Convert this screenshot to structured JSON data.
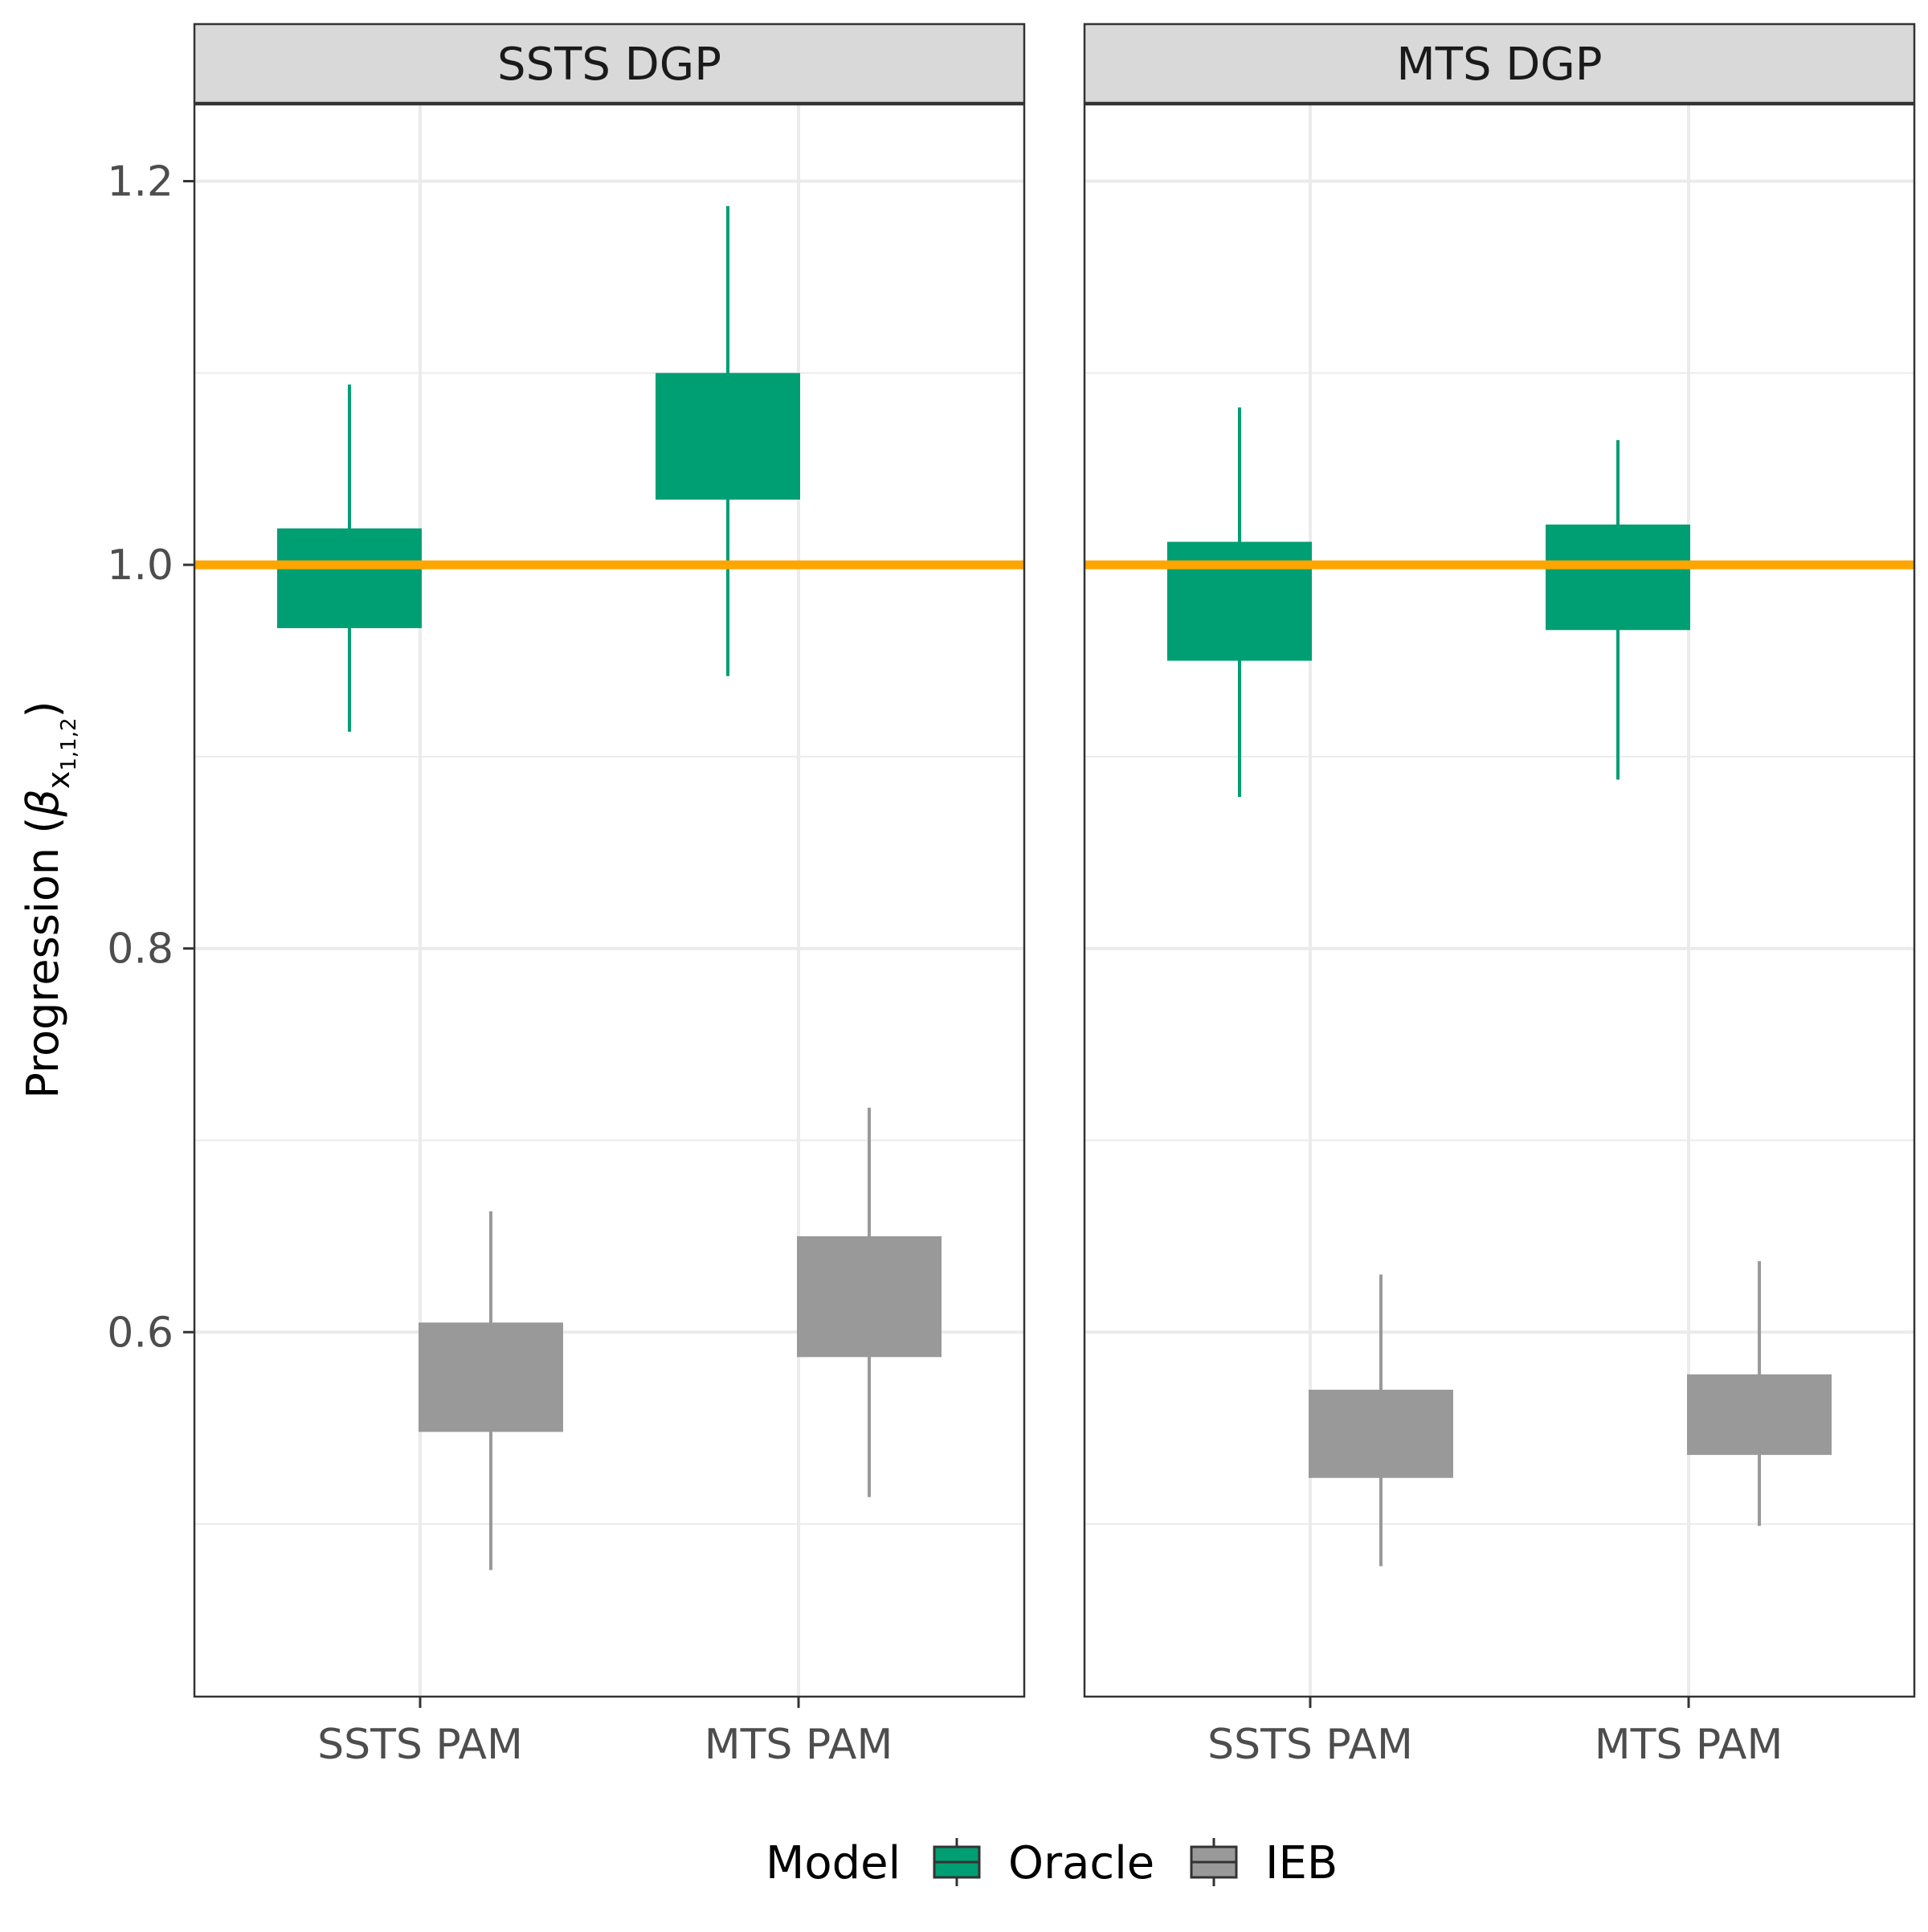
{
  "chart_data": {
    "type": "boxplot",
    "y_axis": {
      "label": "Progression (",
      "label_symbol": "β",
      "label_subscript": "x",
      "label_sub_subscript": "1,1,2",
      "label_close": ")",
      "ylim": [
        0.41,
        1.24
      ],
      "ticks": [
        0.6,
        0.8,
        1.0,
        1.2
      ],
      "tick_labels": [
        "0.6",
        "0.8",
        "1.0",
        "1.2"
      ]
    },
    "categories": [
      "SSTS PAM",
      "MTS PAM"
    ],
    "reference_line": {
      "value": 1.0,
      "color": "#FFA500"
    },
    "grid": true,
    "legend": {
      "title": "Model",
      "position": "bottom",
      "items": [
        {
          "name": "Oracle",
          "color": "#009E73"
        },
        {
          "name": "IEB",
          "color": "#999999"
        }
      ]
    },
    "panels": [
      {
        "title": "SSTS DGP",
        "boxes": [
          {
            "category": "SSTS PAM",
            "series": "Oracle",
            "lower": 0.913,
            "q1": 0.967,
            "q3": 1.019,
            "upper": 1.094
          },
          {
            "category": "SSTS PAM",
            "series": "IEB",
            "lower": 0.476,
            "q1": 0.548,
            "q3": 0.605,
            "upper": 0.663
          },
          {
            "category": "MTS PAM",
            "series": "Oracle",
            "lower": 0.942,
            "q1": 1.034,
            "q3": 1.1,
            "upper": 1.187
          },
          {
            "category": "MTS PAM",
            "series": "IEB",
            "lower": 0.514,
            "q1": 0.587,
            "q3": 0.65,
            "upper": 0.717
          }
        ]
      },
      {
        "title": "MTS DGP",
        "boxes": [
          {
            "category": "SSTS PAM",
            "series": "Oracle",
            "lower": 0.879,
            "q1": 0.95,
            "q3": 1.012,
            "upper": 1.082
          },
          {
            "category": "SSTS PAM",
            "series": "IEB",
            "lower": 0.478,
            "q1": 0.524,
            "q3": 0.57,
            "upper": 0.63
          },
          {
            "category": "MTS PAM",
            "series": "Oracle",
            "lower": 0.888,
            "q1": 0.966,
            "q3": 1.021,
            "upper": 1.065
          },
          {
            "category": "MTS PAM",
            "series": "IEB",
            "lower": 0.499,
            "q1": 0.536,
            "q3": 0.578,
            "upper": 0.637
          }
        ]
      }
    ]
  }
}
